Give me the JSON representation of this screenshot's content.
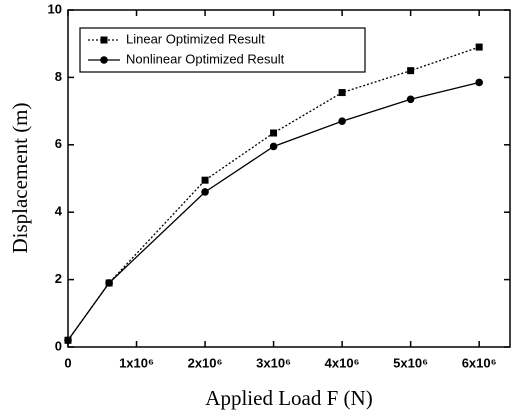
{
  "chart_data": {
    "type": "line",
    "xlabel": "Applied Load F (N)",
    "ylabel": "Displacement (m)",
    "x": [
      0,
      600000,
      2000000,
      3000000,
      4000000,
      5000000,
      6000000
    ],
    "series": [
      {
        "name": "Linear Optimized Result",
        "color": "#000000",
        "dash": "dotted",
        "marker": "square",
        "values": [
          0.2,
          1.9,
          4.95,
          6.35,
          7.55,
          8.2,
          8.9
        ]
      },
      {
        "name": "Nonlinear Optimized Result",
        "color": "#000000",
        "dash": "solid",
        "marker": "circle",
        "values": [
          0.2,
          1.9,
          4.6,
          5.95,
          6.7,
          7.35,
          7.85
        ]
      }
    ],
    "xlim": [
      0,
      6450000
    ],
    "xticks": [
      0,
      {
        "value": 1000000,
        "label": "1x10⁶"
      },
      {
        "value": 2000000,
        "label": "2x10⁶"
      },
      {
        "value": 3000000,
        "label": "3x10⁶"
      },
      {
        "value": 4000000,
        "label": "4x10⁶"
      },
      {
        "value": 5000000,
        "label": "5x10⁶"
      },
      {
        "value": 6000000,
        "label": "6x10⁶"
      }
    ],
    "ylim": [
      0,
      10
    ],
    "yticks": [
      0,
      2,
      4,
      6,
      8,
      10
    ],
    "legend": "upper left"
  }
}
